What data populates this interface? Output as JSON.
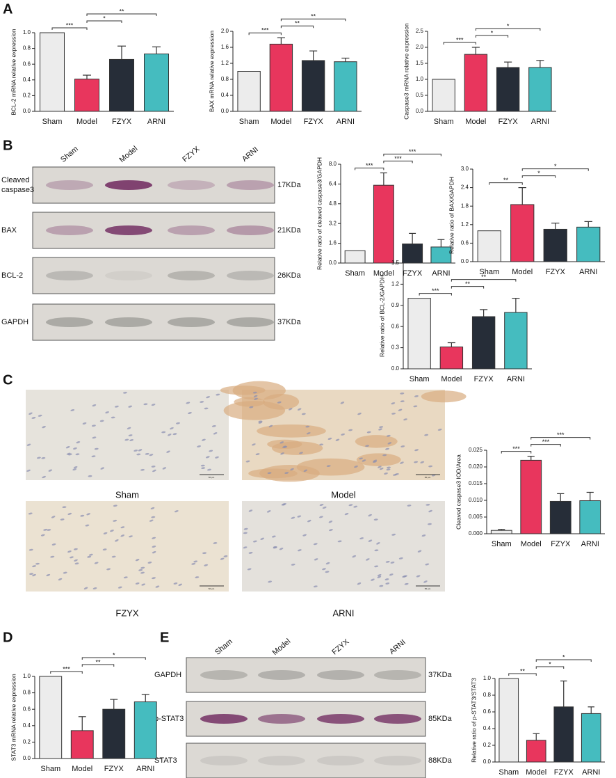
{
  "panel_labels": [
    "A",
    "B",
    "C",
    "D",
    "E"
  ],
  "blot_b": {
    "lanes": [
      "Sham",
      "Model",
      "FZYX",
      "ARNI"
    ],
    "rows": [
      {
        "label": [
          "Cleaved",
          "caspase3"
        ],
        "size": "17KDa"
      },
      {
        "label": [
          "BAX"
        ],
        "size": "21KDa"
      },
      {
        "label": [
          "BCL-2"
        ],
        "size": "26KDa"
      },
      {
        "label": [
          "GAPDH"
        ],
        "size": "37KDa"
      }
    ]
  },
  "micrographs": {
    "labels": [
      "Sham",
      "Model",
      "FZYX",
      "ARNI"
    ],
    "scale_bar": "50 μm"
  },
  "blot_e": {
    "lanes": [
      "Sham",
      "Model",
      "FZYX",
      "ARNI"
    ],
    "rows": [
      {
        "label": [
          "GAPDH"
        ],
        "size": "37KDa"
      },
      {
        "label": [
          "p-STAT3"
        ],
        "size": "85KDa"
      },
      {
        "label": [
          "STAT3"
        ],
        "size": "88KDa"
      }
    ]
  },
  "chart_data": [
    {
      "type": "bar",
      "y_label": "BCL-2 mRNA relative expression",
      "categories": [
        "Sham",
        "Model",
        "FZYX",
        "ARNI"
      ],
      "values": [
        1.0,
        0.41,
        0.66,
        0.73
      ],
      "errors": [
        0,
        0.05,
        0.17,
        0.09
      ],
      "colors": [
        "#ececec",
        "#e8365d",
        "#262d38",
        "#45bcbf"
      ],
      "ylim": [
        0,
        1
      ],
      "yticks": [
        {
          "value": 0,
          "label": "0.0"
        },
        {
          "value": 0.2,
          "label": "0.2"
        },
        {
          "value": 0.4,
          "label": "0.4"
        },
        {
          "value": 0.6,
          "label": "0.6"
        },
        {
          "value": 0.8,
          "label": "0.8"
        },
        {
          "value": 1,
          "label": "1.0"
        }
      ],
      "comparisons": [
        {
          "pair": [
            "Sham",
            "Model"
          ],
          "label": "***"
        },
        {
          "pair": [
            "Model",
            "FZYX"
          ],
          "label": "*"
        },
        {
          "pair": [
            "Model",
            "ARNI"
          ],
          "label": "**"
        }
      ]
    },
    {
      "type": "bar",
      "y_label": "BAX mRNA relative expression",
      "categories": [
        "Sham",
        "Model",
        "FZYX",
        "ARNI"
      ],
      "values": [
        1.0,
        1.68,
        1.27,
        1.24
      ],
      "errors": [
        0,
        0.16,
        0.24,
        0.09
      ],
      "colors": [
        "#ececec",
        "#e8365d",
        "#262d38",
        "#45bcbf"
      ],
      "ylim": [
        0,
        2
      ],
      "yticks": [
        {
          "value": 0,
          "label": "0.0"
        },
        {
          "value": 0.4,
          "label": "0.4"
        },
        {
          "value": 0.8,
          "label": "0.8"
        },
        {
          "value": 1.2,
          "label": "1.2"
        },
        {
          "value": 1.6,
          "label": "1.6"
        },
        {
          "value": 2,
          "label": "2.0"
        }
      ],
      "comparisons": [
        {
          "pair": [
            "Sham",
            "Model"
          ],
          "label": "***"
        },
        {
          "pair": [
            "Model",
            "FZYX"
          ],
          "label": "**"
        },
        {
          "pair": [
            "Model",
            "ARNI"
          ],
          "label": "**"
        }
      ]
    },
    {
      "type": "bar",
      "y_label": "Caspase3 mRNA relative expression",
      "categories": [
        "Sham",
        "Model",
        "FZYX",
        "ARNI"
      ],
      "values": [
        1.0,
        1.78,
        1.37,
        1.37
      ],
      "errors": [
        0,
        0.22,
        0.17,
        0.22
      ],
      "colors": [
        "#ececec",
        "#e8365d",
        "#262d38",
        "#45bcbf"
      ],
      "ylim": [
        0,
        2.5
      ],
      "yticks": [
        {
          "value": 0,
          "label": "0.0"
        },
        {
          "value": 0.5,
          "label": "0.5"
        },
        {
          "value": 1,
          "label": "1.0"
        },
        {
          "value": 1.5,
          "label": "1.5"
        },
        {
          "value": 2,
          "label": "2.0"
        },
        {
          "value": 2.5,
          "label": "2.5"
        }
      ],
      "comparisons": [
        {
          "pair": [
            "Sham",
            "Model"
          ],
          "label": "***"
        },
        {
          "pair": [
            "Model",
            "FZYX"
          ],
          "label": "*"
        },
        {
          "pair": [
            "Model",
            "ARNI"
          ],
          "label": "*"
        }
      ]
    },
    {
      "type": "bar",
      "y_label": "Relative ratio of cleaved caspase3/GAPDH",
      "categories": [
        "Sham",
        "Model",
        "FZYX",
        "ARNI"
      ],
      "values": [
        1.0,
        6.3,
        1.55,
        1.3
      ],
      "errors": [
        0,
        1.0,
        0.85,
        0.6
      ],
      "colors": [
        "#ececec",
        "#e8365d",
        "#262d38",
        "#45bcbf"
      ],
      "ylim": [
        0,
        8
      ],
      "yticks": [
        {
          "value": 0,
          "label": "0.0"
        },
        {
          "value": 1.6,
          "label": "1.6"
        },
        {
          "value": 3.2,
          "label": "3.2"
        },
        {
          "value": 4.8,
          "label": "4.8"
        },
        {
          "value": 6.4,
          "label": "6.4"
        },
        {
          "value": 8,
          "label": "8.0"
        }
      ],
      "comparisons": [
        {
          "pair": [
            "Sham",
            "Model"
          ],
          "label": "***"
        },
        {
          "pair": [
            "Model",
            "FZYX"
          ],
          "label": "***"
        },
        {
          "pair": [
            "Model",
            "ARNI"
          ],
          "label": "***"
        }
      ]
    },
    {
      "type": "bar",
      "y_label": "Relative ratio of BAX/GAPDH",
      "categories": [
        "Sham",
        "Model",
        "FZYX",
        "ARNI"
      ],
      "values": [
        1.0,
        1.85,
        1.05,
        1.12
      ],
      "errors": [
        0,
        0.55,
        0.2,
        0.18
      ],
      "colors": [
        "#ececec",
        "#e8365d",
        "#262d38",
        "#45bcbf"
      ],
      "ylim": [
        0,
        3
      ],
      "yticks": [
        {
          "value": 0,
          "label": "0.0"
        },
        {
          "value": 0.6,
          "label": "0.6"
        },
        {
          "value": 1.2,
          "label": "1.2"
        },
        {
          "value": 1.8,
          "label": "1.8"
        },
        {
          "value": 2.4,
          "label": "2.4"
        },
        {
          "value": 3,
          "label": "3.0"
        }
      ],
      "comparisons": [
        {
          "pair": [
            "Sham",
            "Model"
          ],
          "label": "**"
        },
        {
          "pair": [
            "Model",
            "FZYX"
          ],
          "label": "*"
        },
        {
          "pair": [
            "Model",
            "ARNI"
          ],
          "label": "*"
        }
      ]
    },
    {
      "type": "bar",
      "y_label": "Relative ratio of  BCL-2/GAPDH",
      "categories": [
        "Sham",
        "Model",
        "FZYX",
        "ARNI"
      ],
      "values": [
        1.0,
        0.31,
        0.74,
        0.8
      ],
      "errors": [
        0,
        0.06,
        0.1,
        0.2
      ],
      "colors": [
        "#ececec",
        "#e8365d",
        "#262d38",
        "#45bcbf"
      ],
      "ylim": [
        0,
        1.5
      ],
      "yticks": [
        {
          "value": 0,
          "label": "0.0"
        },
        {
          "value": 0.3,
          "label": "0.3"
        },
        {
          "value": 0.6,
          "label": "0.6"
        },
        {
          "value": 0.9,
          "label": "0.9"
        },
        {
          "value": 1.2,
          "label": "1.2"
        },
        {
          "value": 1.5,
          "label": "1.5"
        }
      ],
      "comparisons": [
        {
          "pair": [
            "Sham",
            "Model"
          ],
          "label": "***"
        },
        {
          "pair": [
            "Model",
            "FZYX"
          ],
          "label": "**"
        },
        {
          "pair": [
            "Model",
            "ARNI"
          ],
          "label": "**"
        }
      ]
    },
    {
      "type": "bar",
      "y_label": "Cleaved caspase3 IOD/Area",
      "categories": [
        "Sham",
        "Model",
        "FZYX",
        "ARNI"
      ],
      "values": [
        0.001,
        0.022,
        0.0097,
        0.0099
      ],
      "errors": [
        0.0003,
        0.0012,
        0.0023,
        0.0025
      ],
      "colors": [
        "#ececec",
        "#e8365d",
        "#262d38",
        "#45bcbf"
      ],
      "ylim": [
        0,
        0.025
      ],
      "yticks": [
        {
          "value": 0,
          "label": "0.000"
        },
        {
          "value": 0.005,
          "label": "0.005"
        },
        {
          "value": 0.01,
          "label": "0.010"
        },
        {
          "value": 0.015,
          "label": "0.015"
        },
        {
          "value": 0.02,
          "label": "0.020"
        },
        {
          "value": 0.025,
          "label": "0.025"
        }
      ],
      "comparisons": [
        {
          "pair": [
            "Sham",
            "Model"
          ],
          "label": "***"
        },
        {
          "pair": [
            "Model",
            "FZYX"
          ],
          "label": "***"
        },
        {
          "pair": [
            "Model",
            "ARNI"
          ],
          "label": "***"
        }
      ]
    },
    {
      "type": "bar",
      "y_label": "STAT3 mRNA relative expression",
      "categories": [
        "Sham",
        "Model",
        "FZYX",
        "ARNI"
      ],
      "values": [
        1.0,
        0.34,
        0.6,
        0.69
      ],
      "errors": [
        0,
        0.17,
        0.12,
        0.09
      ],
      "colors": [
        "#ececec",
        "#e8365d",
        "#262d38",
        "#45bcbf"
      ],
      "ylim": [
        0,
        1
      ],
      "yticks": [
        {
          "value": 0,
          "label": "0.0"
        },
        {
          "value": 0.2,
          "label": "0.2"
        },
        {
          "value": 0.4,
          "label": "0.4"
        },
        {
          "value": 0.6,
          "label": "0.6"
        },
        {
          "value": 0.8,
          "label": "0.8"
        },
        {
          "value": 1,
          "label": "1.0"
        }
      ],
      "comparisons": [
        {
          "pair": [
            "Sham",
            "Model"
          ],
          "label": "***"
        },
        {
          "pair": [
            "Model",
            "FZYX"
          ],
          "label": "**"
        },
        {
          "pair": [
            "Model",
            "ARNI"
          ],
          "label": "*"
        }
      ]
    },
    {
      "type": "bar",
      "y_label": "Relative ratio of p-STAT3/STAT3",
      "categories": [
        "Sham",
        "Model",
        "FZYX",
        "ARNI"
      ],
      "values": [
        1.0,
        0.26,
        0.66,
        0.58
      ],
      "errors": [
        0,
        0.08,
        0.31,
        0.08
      ],
      "colors": [
        "#ececec",
        "#e8365d",
        "#262d38",
        "#45bcbf"
      ],
      "ylim": [
        0,
        1
      ],
      "yticks": [
        {
          "value": 0,
          "label": "0.0"
        },
        {
          "value": 0.2,
          "label": "0.2"
        },
        {
          "value": 0.4,
          "label": "0.4"
        },
        {
          "value": 0.6,
          "label": "0.6"
        },
        {
          "value": 0.8,
          "label": "0.8"
        },
        {
          "value": 1,
          "label": "1.0"
        }
      ],
      "comparisons": [
        {
          "pair": [
            "Sham",
            "Model"
          ],
          "label": "**"
        },
        {
          "pair": [
            "Model",
            "FZYX"
          ],
          "label": "*"
        },
        {
          "pair": [
            "Model",
            "ARNI"
          ],
          "label": "*"
        }
      ]
    }
  ]
}
